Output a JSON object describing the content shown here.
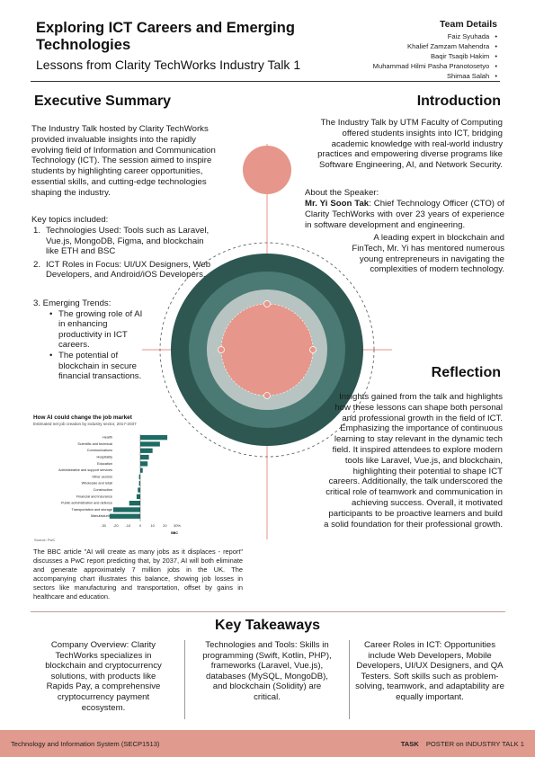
{
  "header": {
    "title": "Exploring ICT Careers and Emerging Technologies",
    "subtitle": "Lessons from Clarity TechWorks Industry Talk 1"
  },
  "team": {
    "heading": "Team Details",
    "members": [
      "Faiz Syuhada",
      "Khalief Zamzam Mahendra",
      "Baqir Tsaqib Hakim",
      "Muhammad Hilmi Pasha Pranotosetyo",
      "Shimaa Salah"
    ]
  },
  "executive_summary": {
    "heading": "Executive Summary",
    "text": "The Industry Talk hosted by Clarity TechWorks provided invaluable insights into the rapidly evolving field of Information and Communication Technology (ICT). The session aimed to inspire students by highlighting career opportunities, essential skills, and cutting-edge technologies shaping the industry.",
    "topics_heading": "Key topics included:",
    "topics": [
      {
        "num": "1.",
        "text": "Technologies Used: Tools such as Laravel, Vue.js, MongoDB, Figma, and blockchain like ETH and BSC"
      },
      {
        "num": "2.",
        "text": "ICT Roles in Focus: UI/UX Designers, Web Developers, and Android/iOS Developers."
      }
    ],
    "trends_heading": "3. Emerging Trends:",
    "trends": [
      "The growing role of AI in enhancing productivity in ICT careers.",
      "The potential of blockchain in secure financial transactions."
    ]
  },
  "introduction": {
    "heading": "Introduction",
    "text": "The Industry Talk by UTM Faculty of Computing offered students insights into ICT, bridging academic knowledge with real-world industry practices and empowering diverse programs like Software Engineering, AI, and Network Security.",
    "speaker_label": "About the Speaker:",
    "speaker_name": "Mr. Yi Soon Tak",
    "speaker_text": ": Chief Technology Officer (CTO) of Clarity TechWorks with over 23 years of experience in software development and engineering.",
    "speaker_tail": "A leading expert in blockchain and FinTech, Mr. Yi has mentored numerous young entrepreneurs in navigating the complexities of modern technology."
  },
  "reflection": {
    "heading": "Reflection",
    "text": "Insights gained from the talk and highlights how these lessons can shape both personal and professional growth in the field of ICT. Emphasizing the importance of continuous learning to stay relevant in the dynamic tech field. It inspired attendees to explore modern tools like Laravel, Vue.js, and blockchain, highlighting their potential to shape ICT careers. Additionally, the talk underscored the critical role of teamwork and communication in achieving success. Overall, it motivated participants to be proactive learners and build a solid foundation for their professional growth."
  },
  "chart_data": {
    "type": "bar",
    "orientation": "horizontal",
    "title": "How AI could change the job market",
    "subtitle": "Estimated net job creation by industry sector, 2017-2037",
    "source": "Source: PwC",
    "brand": "BBC",
    "categories": [
      "Health",
      "Scientific and technical",
      "Communications",
      "Hospitality",
      "Education",
      "Administrative and support services",
      "Other sectors",
      "Wholesale and retail",
      "Construction",
      "Financial and insurance",
      "Public administration and defence",
      "Transportation and storage",
      "Manufacturing"
    ],
    "values": [
      22,
      16,
      10,
      7,
      6,
      2,
      -1,
      -1,
      -2,
      -3,
      -9,
      -22,
      -25
    ],
    "xlim": [
      -30,
      30
    ],
    "xticks": [
      "-30",
      "-20",
      "-10",
      "0",
      "10",
      "20",
      "30%"
    ],
    "color": "#1e6b63"
  },
  "bbc_text": "The BBC article \"AI will create as many jobs as it displaces - report\" discusses a PwC report predicting that, by 2037, AI will both eliminate and generate approximately 7 million jobs in the UK. The accompanying chart illustrates this balance, showing job losses in sectors like manufacturing and transportation, offset by gains in healthcare and education.",
  "key_takeaways": {
    "heading": "Key Takeaways",
    "columns": [
      "Company Overview: Clarity TechWorks specializes in blockchain and cryptocurrency solutions, with products like Rapids Pay, a comprehensive cryptocurrency payment ecosystem.",
      "Technologies and Tools: Skills in programming (Swift, Kotlin, PHP), frameworks (Laravel, Vue.js), databases (MySQL, MongoDB), and blockchain (Solidity) are critical.",
      "Career Roles in ICT: Opportunities include Web Developers, Mobile Developers, UI/UX Designers, and QA Testers. Soft skills such as problem-solving, teamwork, and adaptability are equally important."
    ]
  },
  "footer": {
    "left": "Technology and Information System (SECP1513)",
    "task": "TASK",
    "right": "POSTER on INDUSTRY TALK 1"
  },
  "colors": {
    "dark_teal": "#2e5752",
    "mid_teal": "#4a7a73",
    "light_grey": "#b8c4c1",
    "salmon": "#e6968a",
    "footer": "#e09a8e"
  }
}
